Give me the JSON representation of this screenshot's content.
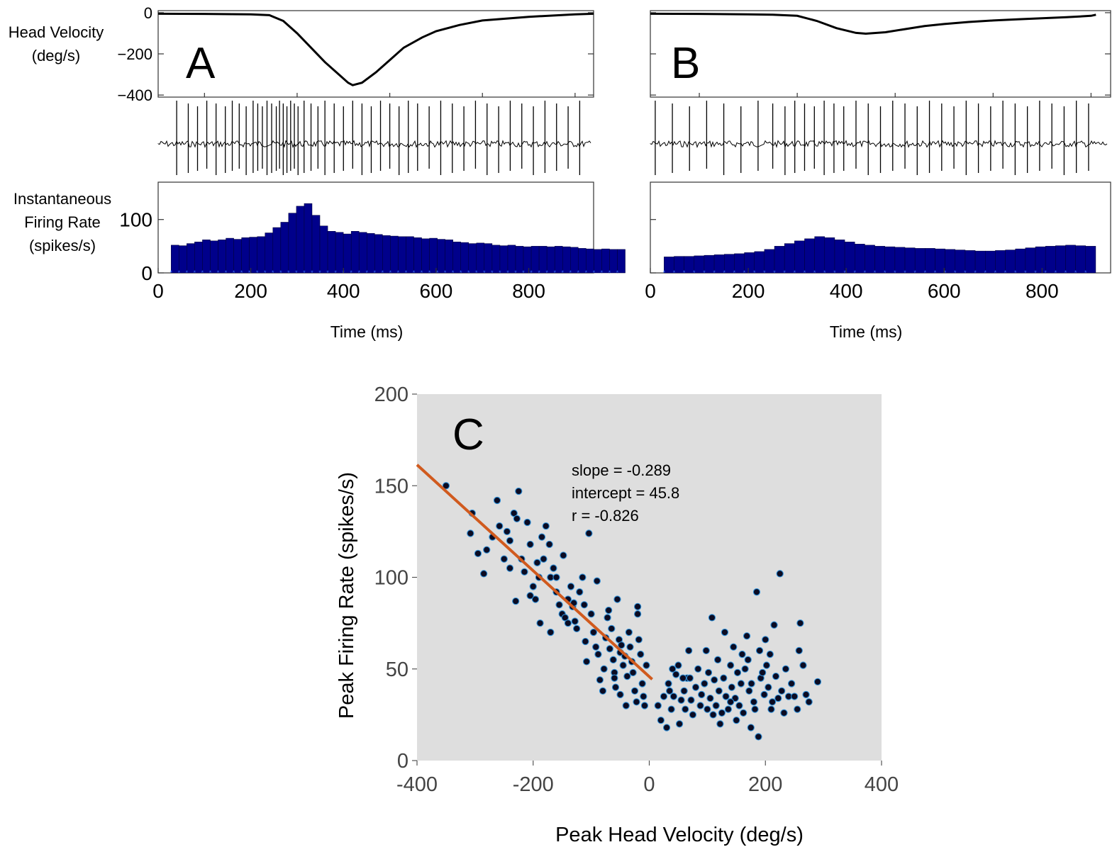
{
  "panel_a": {
    "letter": "A",
    "vel_label": [
      "Head Velocity",
      "(deg/s)"
    ],
    "rate_label": [
      "Instantaneous",
      "Firing Rate",
      "(spikes/s)"
    ],
    "xlabel": "Time (ms)"
  },
  "panel_b": {
    "letter": "B",
    "xlabel": "Time (ms)"
  },
  "panel_c": {
    "letter": "C",
    "xlabel": "Peak Head Velocity (deg/s)",
    "ylabel": "Peak Firing Rate (spikes/s)",
    "stats": [
      "slope = -0.289",
      "intercept = 45.8",
      "r = -0.826"
    ]
  },
  "chart_data": [
    {
      "type": "line",
      "panel": "A",
      "ylabel": "Head Velocity (deg/s)",
      "xlim": [
        0,
        940
      ],
      "ylim": [
        -410,
        10
      ],
      "yticks": [
        0,
        -200,
        -400
      ],
      "x": [
        0,
        100,
        200,
        240,
        270,
        300,
        330,
        360,
        390,
        410,
        420,
        440,
        470,
        500,
        530,
        570,
        600,
        650,
        700,
        800,
        900,
        940
      ],
      "y": [
        -5,
        -6,
        -8,
        -12,
        -40,
        -100,
        -170,
        -240,
        -300,
        -340,
        -352,
        -340,
        -290,
        -230,
        -170,
        -120,
        -90,
        -60,
        -38,
        -20,
        -8,
        -5
      ]
    },
    {
      "type": "line",
      "panel": "A-trace",
      "xlim": [
        0,
        940
      ],
      "spike_times": [
        40,
        65,
        85,
        105,
        125,
        145,
        160,
        175,
        190,
        205,
        215,
        225,
        235,
        245,
        255,
        262,
        270,
        278,
        286,
        294,
        302,
        315,
        330,
        345,
        360,
        380,
        400,
        420,
        440,
        460,
        480,
        500,
        520,
        540,
        560,
        585,
        610,
        635,
        660,
        685,
        710,
        735,
        760,
        785,
        810,
        835,
        860,
        885,
        910
      ]
    },
    {
      "type": "bar",
      "panel": "A",
      "ylabel": "Instantaneous Firing Rate (spikes/s)",
      "xlim": [
        0,
        940
      ],
      "ylim": [
        0,
        170
      ],
      "yticks": [
        0,
        100
      ],
      "xticks": [
        0,
        200,
        400,
        600,
        800
      ],
      "xlabel": "Time (ms)",
      "bin_start": 28,
      "bin_width": 16.9,
      "values": [
        52,
        51,
        55,
        58,
        62,
        60,
        62,
        65,
        63,
        66,
        67,
        68,
        75,
        85,
        95,
        112,
        125,
        130,
        108,
        88,
        78,
        76,
        73,
        78,
        76,
        74,
        72,
        70,
        69,
        68,
        68,
        66,
        64,
        65,
        63,
        62,
        58,
        57,
        55,
        56,
        55,
        52,
        51,
        52,
        50,
        49,
        50,
        50,
        49,
        50,
        49,
        48,
        46,
        45,
        44,
        45,
        44,
        44
      ]
    },
    {
      "type": "line",
      "panel": "B",
      "xlim": [
        0,
        940
      ],
      "ylim": [
        -410,
        10
      ],
      "x": [
        0,
        100,
        200,
        250,
        300,
        340,
        380,
        420,
        440,
        480,
        520,
        560,
        600,
        650,
        700,
        750,
        800,
        850,
        900,
        910
      ],
      "y": [
        -5,
        -6,
        -8,
        -10,
        -15,
        -40,
        -75,
        -98,
        -102,
        -95,
        -80,
        -65,
        -55,
        -45,
        -38,
        -32,
        -27,
        -22,
        -15,
        -10
      ]
    },
    {
      "type": "line",
      "panel": "B-trace",
      "xlim": [
        0,
        940
      ],
      "spike_times": [
        10,
        45,
        80,
        115,
        150,
        185,
        220,
        250,
        275,
        295,
        315,
        335,
        355,
        375,
        395,
        420,
        445,
        470,
        495,
        520,
        545,
        570,
        595,
        620,
        645,
        670,
        695,
        720,
        745,
        770,
        795,
        820,
        845,
        870,
        895
      ]
    },
    {
      "type": "bar",
      "panel": "B",
      "xlim": [
        0,
        940
      ],
      "ylim": [
        0,
        170
      ],
      "xticks": [
        0,
        200,
        400,
        600,
        800
      ],
      "xlabel": "Time (ms)",
      "bin_start": 28,
      "bin_width": 20.5,
      "values": [
        30,
        31,
        31,
        32,
        33,
        34,
        35,
        36,
        38,
        40,
        44,
        50,
        55,
        60,
        64,
        68,
        66,
        62,
        58,
        54,
        52,
        50,
        49,
        48,
        47,
        46,
        46,
        45,
        44,
        43,
        42,
        41,
        41,
        42,
        43,
        45,
        47,
        49,
        50,
        51,
        52,
        51,
        50
      ]
    },
    {
      "type": "scatter",
      "panel": "C",
      "xlabel": "Peak Head Velocity (deg/s)",
      "ylabel": "Peak Firing Rate (spikes/s)",
      "xlim": [
        -400,
        400
      ],
      "ylim": [
        0,
        200
      ],
      "xticks": [
        -400,
        -200,
        0,
        200,
        400
      ],
      "yticks": [
        0,
        50,
        100,
        150,
        200
      ],
      "grid": false,
      "background": "#dedede",
      "fit_line": {
        "slope": -0.289,
        "intercept": 45.8,
        "x_range": [
          -400,
          5
        ],
        "color": "#d05a1e"
      },
      "points": [
        [
          -350,
          150
        ],
        [
          -305,
          135
        ],
        [
          -308,
          124
        ],
        [
          -295,
          113
        ],
        [
          -285,
          102
        ],
        [
          -280,
          115
        ],
        [
          -270,
          122
        ],
        [
          -262,
          142
        ],
        [
          -258,
          128
        ],
        [
          -250,
          110
        ],
        [
          -245,
          125
        ],
        [
          -240,
          120
        ],
        [
          -233,
          135
        ],
        [
          -225,
          147
        ],
        [
          -228,
          132
        ],
        [
          -220,
          110
        ],
        [
          -215,
          103
        ],
        [
          -210,
          130
        ],
        [
          -205,
          118
        ],
        [
          -200,
          95
        ],
        [
          -196,
          88
        ],
        [
          -193,
          108
        ],
        [
          -190,
          100
        ],
        [
          -185,
          122
        ],
        [
          -182,
          110
        ],
        [
          -178,
          128
        ],
        [
          -172,
          118
        ],
        [
          -170,
          100
        ],
        [
          -165,
          105
        ],
        [
          -160,
          92
        ],
        [
          -155,
          85
        ],
        [
          -150,
          80
        ],
        [
          -145,
          78
        ],
        [
          -140,
          88
        ],
        [
          -135,
          95
        ],
        [
          -132,
          84
        ],
        [
          -128,
          76
        ],
        [
          -125,
          72
        ],
        [
          -120,
          92
        ],
        [
          -115,
          100
        ],
        [
          -112,
          85
        ],
        [
          -110,
          65
        ],
        [
          -108,
          54
        ],
        [
          -104,
          124
        ],
        [
          -100,
          80
        ],
        [
          -96,
          70
        ],
        [
          -92,
          62
        ],
        [
          -88,
          58
        ],
        [
          -85,
          44
        ],
        [
          -80,
          38
        ],
        [
          -78,
          50
        ],
        [
          -75,
          67
        ],
        [
          -72,
          78
        ],
        [
          -70,
          82
        ],
        [
          -68,
          61
        ],
        [
          -65,
          72
        ],
        [
          -62,
          55
        ],
        [
          -60,
          48
        ],
        [
          -58,
          40
        ],
        [
          -55,
          88
        ],
        [
          -52,
          66
        ],
        [
          -50,
          59
        ],
        [
          -48,
          63
        ],
        [
          -45,
          52
        ],
        [
          -42,
          57
        ],
        [
          -40,
          30
        ],
        [
          -38,
          46
        ],
        [
          -35,
          70
        ],
        [
          -33,
          62
        ],
        [
          -30,
          54
        ],
        [
          -28,
          48
        ],
        [
          -25,
          38
        ],
        [
          -22,
          32
        ],
        [
          -20,
          80
        ],
        [
          -18,
          66
        ],
        [
          -15,
          58
        ],
        [
          -12,
          42
        ],
        [
          -10,
          35
        ],
        [
          -8,
          30
        ],
        [
          -5,
          52
        ],
        [
          -130,
          86
        ],
        [
          -160,
          100
        ],
        [
          -205,
          90
        ],
        [
          -240,
          105
        ],
        [
          -170,
          70
        ],
        [
          -140,
          75
        ],
        [
          -60,
          45
        ],
        [
          -20,
          84
        ],
        [
          -50,
          36
        ],
        [
          -90,
          98
        ],
        [
          -230,
          87
        ],
        [
          -148,
          112
        ],
        [
          -188,
          75
        ],
        [
          15,
          30
        ],
        [
          20,
          22
        ],
        [
          25,
          35
        ],
        [
          30,
          18
        ],
        [
          33,
          42
        ],
        [
          38,
          28
        ],
        [
          42,
          35
        ],
        [
          46,
          47
        ],
        [
          50,
          52
        ],
        [
          52,
          20
        ],
        [
          55,
          33
        ],
        [
          60,
          38
        ],
        [
          62,
          28
        ],
        [
          65,
          45
        ],
        [
          68,
          60
        ],
        [
          72,
          33
        ],
        [
          75,
          25
        ],
        [
          80,
          40
        ],
        [
          84,
          50
        ],
        [
          88,
          30
        ],
        [
          90,
          36
        ],
        [
          95,
          42
        ],
        [
          98,
          60
        ],
        [
          100,
          28
        ],
        [
          102,
          48
        ],
        [
          105,
          34
        ],
        [
          108,
          78
        ],
        [
          112,
          44
        ],
        [
          115,
          30
        ],
        [
          118,
          55
        ],
        [
          120,
          38
        ],
        [
          122,
          20
        ],
        [
          125,
          26
        ],
        [
          128,
          45
        ],
        [
          130,
          70
        ],
        [
          132,
          35
        ],
        [
          136,
          28
        ],
        [
          140,
          52
        ],
        [
          142,
          40
        ],
        [
          145,
          62
        ],
        [
          148,
          34
        ],
        [
          150,
          22
        ],
        [
          152,
          48
        ],
        [
          155,
          30
        ],
        [
          158,
          42
        ],
        [
          162,
          26
        ],
        [
          165,
          50
        ],
        [
          168,
          68
        ],
        [
          170,
          55
        ],
        [
          172,
          38
        ],
        [
          176,
          42
        ],
        [
          180,
          32
        ],
        [
          182,
          28
        ],
        [
          185,
          92
        ],
        [
          188,
          13
        ],
        [
          190,
          60
        ],
        [
          192,
          45
        ],
        [
          195,
          48
        ],
        [
          198,
          36
        ],
        [
          200,
          66
        ],
        [
          202,
          52
        ],
        [
          205,
          40
        ],
        [
          208,
          58
        ],
        [
          210,
          28
        ],
        [
          212,
          32
        ],
        [
          215,
          74
        ],
        [
          218,
          46
        ],
        [
          222,
          34
        ],
        [
          225,
          102
        ],
        [
          228,
          38
        ],
        [
          232,
          26
        ],
        [
          235,
          50
        ],
        [
          240,
          35
        ],
        [
          245,
          42
        ],
        [
          250,
          35
        ],
        [
          255,
          28
        ],
        [
          258,
          60
        ],
        [
          260,
          75
        ],
        [
          265,
          52
        ],
        [
          270,
          36
        ],
        [
          275,
          32
        ],
        [
          290,
          43
        ],
        [
          35,
          38
        ],
        [
          70,
          45
        ],
        [
          140,
          32
        ],
        [
          160,
          58
        ],
        [
          40,
          50
        ],
        [
          58,
          45
        ],
        [
          110,
          25
        ],
        [
          175,
          18
        ]
      ]
    }
  ]
}
